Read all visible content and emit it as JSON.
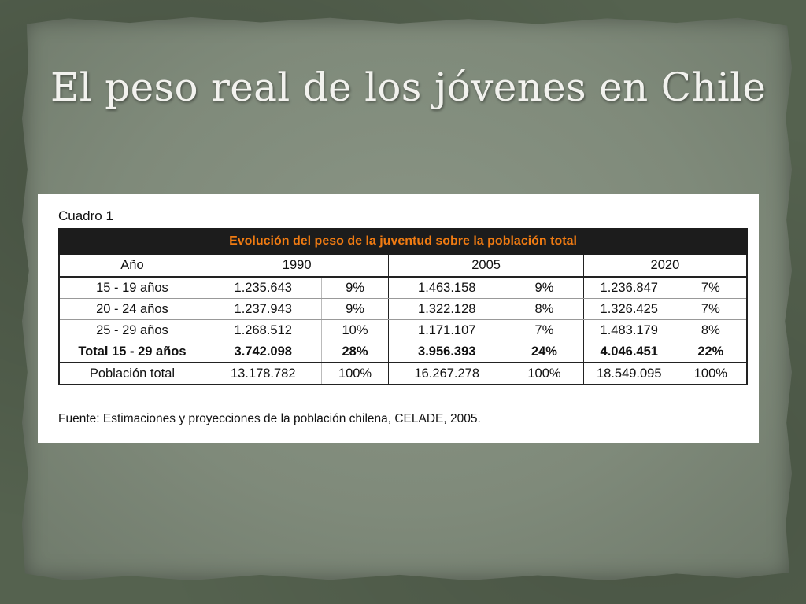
{
  "slide": {
    "title": "El peso real de los jóvenes en Chile"
  },
  "table": {
    "caption": "Cuadro 1",
    "banner": "Evolución del peso de la juventud sobre la población total",
    "header": {
      "col0": "Año",
      "years": [
        "1990",
        "2005",
        "2020"
      ]
    },
    "rows": [
      {
        "label": "15 - 19 años",
        "cells": [
          "1.235.643",
          "9%",
          "1.463.158",
          "9%",
          "1.236.847",
          "7%"
        ]
      },
      {
        "label": "20 - 24 años",
        "cells": [
          "1.237.943",
          "9%",
          "1.322.128",
          "8%",
          "1.326.425",
          "7%"
        ]
      },
      {
        "label": "25 - 29 años",
        "cells": [
          "1.268.512",
          "10%",
          "1.171.107",
          "7%",
          "1.483.179",
          "8%"
        ]
      },
      {
        "label": "Total 15 - 29 años",
        "cells": [
          "3.742.098",
          "28%",
          "3.956.393",
          "24%",
          "4.046.451",
          "22%"
        ]
      },
      {
        "label": "Población total",
        "cells": [
          "13.178.782",
          "100%",
          "16.267.278",
          "100%",
          "18.549.095",
          "100%"
        ]
      }
    ],
    "source": "Fuente: Estimaciones y proyecciones de la población chilena, CELADE, 2005."
  }
}
